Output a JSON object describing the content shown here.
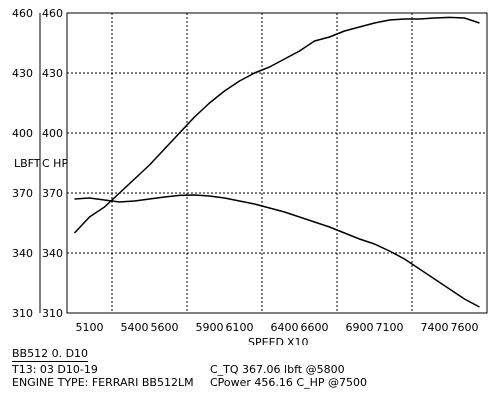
{
  "chart_data": {
    "type": "line",
    "xlabel": "SPEED",
    "xunit": "X10",
    "ylabel_left": "LBFT",
    "ylabel_right": "C HP",
    "ylim": [
      310,
      460
    ],
    "xlim": [
      4950,
      7750
    ],
    "yticks": [
      310,
      340,
      370,
      400,
      430,
      460
    ],
    "xtick_labels": [
      "5100",
      "5400",
      "5600",
      "5900",
      "6100",
      "6400",
      "6600",
      "6900",
      "7100",
      "7400",
      "7600"
    ],
    "xtick_positions": [
      5100,
      5400,
      5600,
      5900,
      6100,
      6400,
      6600,
      6900,
      7100,
      7400,
      7600
    ],
    "grid": true,
    "series": [
      {
        "id": "power",
        "x": [
          5000,
          5100,
          5200,
          5300,
          5400,
          5500,
          5600,
          5700,
          5800,
          5900,
          6000,
          6100,
          6200,
          6300,
          6400,
          6500,
          6600,
          6700,
          6800,
          6900,
          7000,
          7100,
          7200,
          7300,
          7400,
          7500,
          7600,
          7700
        ],
        "y": [
          350,
          358,
          363,
          370,
          377,
          384,
          392,
          400,
          408,
          415,
          421,
          426,
          430,
          433,
          437,
          441,
          446,
          448,
          451,
          453,
          455,
          456.5,
          457,
          457,
          457.5,
          457.8,
          457.5,
          455
        ]
      },
      {
        "id": "torque",
        "x": [
          5000,
          5100,
          5200,
          5300,
          5400,
          5500,
          5600,
          5700,
          5800,
          5900,
          6000,
          6100,
          6200,
          6300,
          6400,
          6500,
          6600,
          6700,
          6800,
          6900,
          7000,
          7100,
          7200,
          7300,
          7400,
          7500,
          7600,
          7700
        ],
        "y": [
          367,
          367.5,
          366.5,
          365.5,
          366,
          367,
          368,
          368.8,
          369,
          368.5,
          367.5,
          366,
          364.5,
          362.5,
          360.5,
          358,
          355.5,
          353,
          350,
          347,
          344.5,
          341,
          337,
          332,
          327,
          322,
          317,
          313
        ]
      }
    ]
  },
  "header": {
    "test_id": "BB512 0. D10"
  },
  "info": {
    "left_line1": "T13: 03 D10-19",
    "left_line2": "ENGINE TYPE: FERRARI BB512LM",
    "right_line1": "C_TQ  367.06  lbft  @5800",
    "right_line2": "CPower  456.16  C_HP  @7500"
  },
  "colors": {
    "line": "#000000",
    "grid": "#000000",
    "background": "#ffffff"
  }
}
